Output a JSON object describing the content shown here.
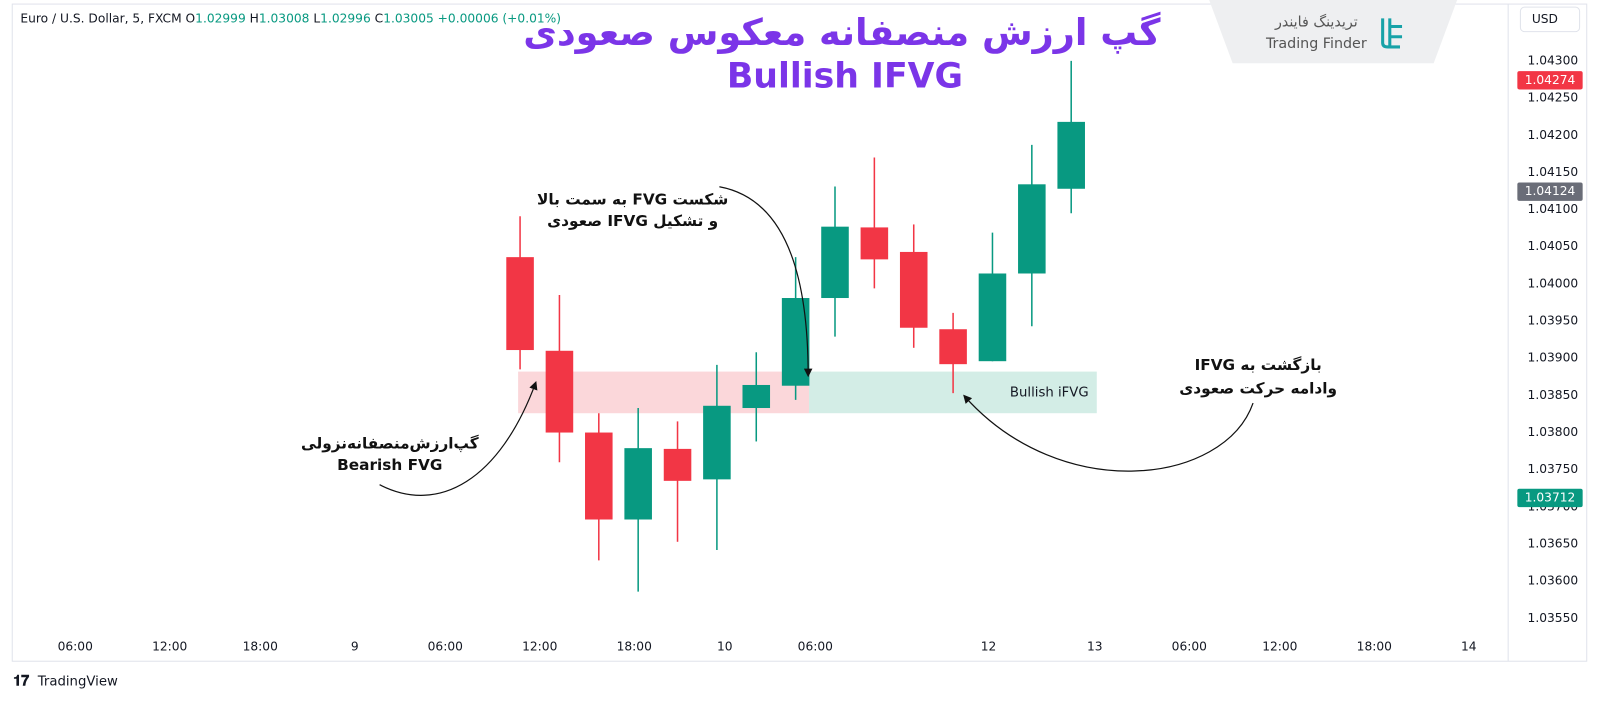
{
  "header": {
    "symbol": "Euro / U.S. Dollar, 5, FXCM",
    "ohlc": [
      {
        "key": "O",
        "value": "1.02999"
      },
      {
        "key": "H",
        "value": "1.03008"
      },
      {
        "key": "L",
        "value": "1.02996"
      },
      {
        "key": "C",
        "value": "1.03005"
      }
    ],
    "change": "+0.00006 (+0.01%)",
    "currency": "USD"
  },
  "logo": {
    "name_fa": "تریدینگ فایندر",
    "name_en": "Trading Finder"
  },
  "footer": "TradingView",
  "chart_data": {
    "type": "candlestick",
    "title": "گپ ارزش منصفانه معکوس صعودی",
    "subtitle": "Bullish IFVG",
    "x": [
      0,
      1,
      2,
      3,
      4,
      5,
      6,
      7,
      8,
      9,
      10,
      11,
      12,
      13,
      14
    ],
    "open": [
      1.04036,
      1.0391,
      1.038,
      1.03683,
      1.03778,
      1.03737,
      1.03833,
      1.03863,
      1.03981,
      1.04076,
      1.04043,
      1.03939,
      1.03896,
      1.04014,
      1.04128
    ],
    "high": [
      1.04091,
      1.03985,
      1.03826,
      1.03833,
      1.03815,
      1.03891,
      1.03908,
      1.04036,
      1.04131,
      1.0417,
      1.0408,
      1.03961,
      1.04069,
      1.04187,
      1.043
    ],
    "low": [
      1.03885,
      1.0376,
      1.03628,
      1.03586,
      1.03653,
      1.03642,
      1.03788,
      1.03844,
      1.03929,
      1.03994,
      1.03914,
      1.03853,
      1.03896,
      1.03943,
      1.04095
    ],
    "close": [
      1.03911,
      1.038,
      1.03683,
      1.03779,
      1.03735,
      1.03836,
      1.03864,
      1.03981,
      1.04077,
      1.04033,
      1.03941,
      1.03892,
      1.04014,
      1.04134,
      1.04218
    ],
    "up_color": "#089981",
    "down_color": "#f23645",
    "xlim": [
      -12.9,
      25.1
    ],
    "xticks": [
      {
        "value": -11.3,
        "label": "06:00"
      },
      {
        "value": -8.9,
        "label": "12:00"
      },
      {
        "value": -6.6,
        "label": "18:00"
      },
      {
        "value": -4.2,
        "label": "9"
      },
      {
        "value": -1.9,
        "label": "06:00"
      },
      {
        "value": 0.5,
        "label": "12:00"
      },
      {
        "value": 2.9,
        "label": "18:00"
      },
      {
        "value": 5.2,
        "label": "10"
      },
      {
        "value": 7.5,
        "label": "06:00"
      },
      {
        "value": 11.9,
        "label": "12"
      },
      {
        "value": 14.6,
        "label": "13"
      },
      {
        "value": 17.0,
        "label": "06:00"
      },
      {
        "value": 19.3,
        "label": "12:00"
      },
      {
        "value": 21.7,
        "label": "18:00"
      },
      {
        "value": 24.1,
        "label": "14"
      }
    ],
    "ylim": [
      1.03528,
      1.04371
    ],
    "yticks": [
      {
        "value": 1.0355,
        "label": "1.03550"
      },
      {
        "value": 1.036,
        "label": "1.03600"
      },
      {
        "value": 1.0365,
        "label": "1.03650"
      },
      {
        "value": 1.037,
        "label": "1.03700"
      },
      {
        "value": 1.0375,
        "label": "1.03750"
      },
      {
        "value": 1.038,
        "label": "1.03800"
      },
      {
        "value": 1.0385,
        "label": "1.03850"
      },
      {
        "value": 1.039,
        "label": "1.03900"
      },
      {
        "value": 1.0395,
        "label": "1.03950"
      },
      {
        "value": 1.04,
        "label": "1.04000"
      },
      {
        "value": 1.0405,
        "label": "1.04050"
      },
      {
        "value": 1.041,
        "label": "1.04100"
      },
      {
        "value": 1.0415,
        "label": "1.04150"
      },
      {
        "value": 1.042,
        "label": "1.04200"
      },
      {
        "value": 1.0425,
        "label": "1.04250"
      },
      {
        "value": 1.043,
        "label": "1.04300"
      }
    ],
    "grid": false,
    "price_labels": [
      {
        "value": 1.04274,
        "color": "#f23645"
      },
      {
        "value": 1.04124,
        "color": "#6a6d78"
      },
      {
        "value": 1.03712,
        "color": "#089981"
      }
    ],
    "zones": [
      {
        "x": [
          -0.05,
          7.34
        ],
        "y": [
          1.03826,
          1.03882
        ],
        "color": "#fbd7da"
      },
      {
        "x": [
          7.34,
          14.65
        ],
        "y": [
          1.03826,
          1.03882
        ],
        "color": "#d3ede6",
        "label": "Bullish iFVG"
      }
    ],
    "annotations": [
      {
        "lines": [
          "گپ‌ارزش‌منصفانه‌نزولی",
          "Bearish FVG"
        ]
      },
      {
        "lines": [
          "شکست FVG به سمت بالا",
          "و تشکیل IFVG صعودی"
        ]
      },
      {
        "lines": [
          "بازگشت به IFVG",
          "وادامه حرکت صعودی"
        ]
      }
    ]
  }
}
